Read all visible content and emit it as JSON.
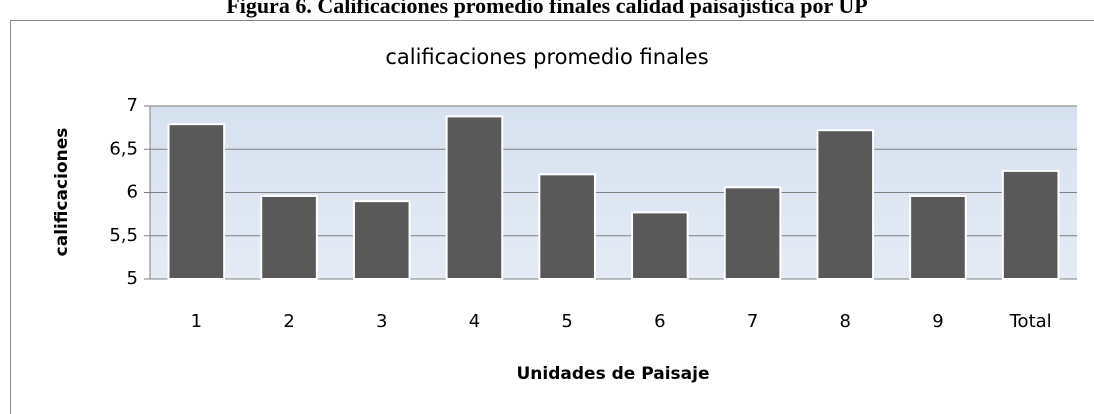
{
  "figure_title": "Figura 6. Calificaciones promedio finales calidad paisajística por UP",
  "chart_data": {
    "type": "bar",
    "title": "calificaciones promedio finales",
    "x_label": "Unidades de Paisaje",
    "y_label": "calificaciones",
    "categories": [
      "1",
      "2",
      "3",
      "4",
      "5",
      "6",
      "7",
      "8",
      "9",
      "Total"
    ],
    "values": [
      6.79,
      5.96,
      5.9,
      6.88,
      6.21,
      5.77,
      6.06,
      6.72,
      5.96,
      6.25
    ],
    "color": "#595959",
    "ylim": [
      5,
      7
    ],
    "yticks": [
      5,
      {
        "value": 5.5,
        "label": "5,5"
      },
      6,
      {
        "value": 6.5,
        "label": "6,5"
      },
      7
    ],
    "grid": true
  }
}
